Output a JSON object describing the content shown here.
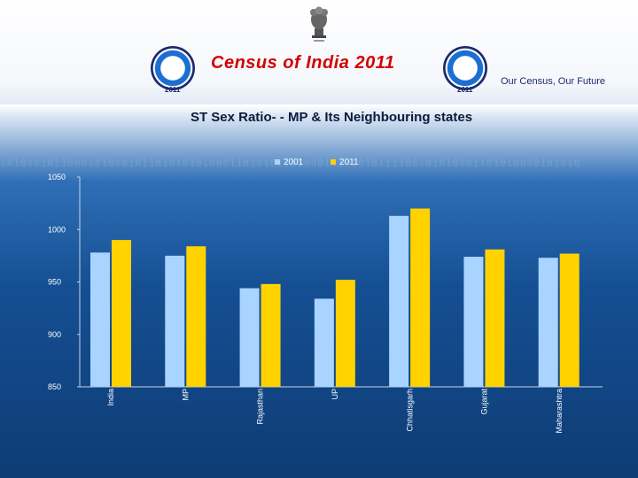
{
  "header": {
    "title": "Census of India 2011",
    "tagline": "Our Census, Our Future",
    "logo_year": "2011"
  },
  "colors": {
    "series_2001": "#a9d4ff",
    "series_2011": "#ffd200"
  },
  "chart_data": {
    "type": "bar",
    "title": "ST Sex Ratio- - MP & Its Neighbouring states",
    "categories": [
      "India",
      "MP",
      "Rajasthan",
      "UP",
      "Chhatisgarh",
      "Gujarat",
      "Maharashtra"
    ],
    "series": [
      {
        "name": "2001",
        "values": [
          978,
          975,
          944,
          934,
          1013,
          974,
          973
        ]
      },
      {
        "name": "2011",
        "values": [
          990,
          984,
          948,
          952,
          1020,
          981,
          977
        ]
      }
    ],
    "ylim": [
      850,
      1050
    ],
    "yticks": [
      850,
      900,
      950,
      1000,
      1050
    ],
    "legend": "top-center",
    "grid": false
  }
}
